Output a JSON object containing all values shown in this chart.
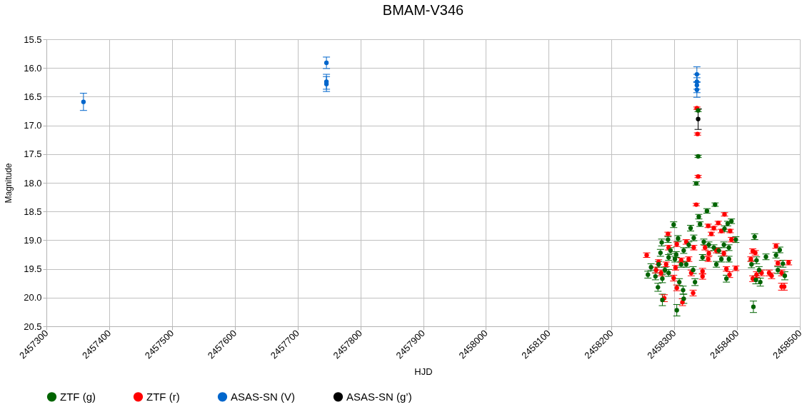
{
  "chart_data": {
    "type": "scatter",
    "title": "BMAM-V346",
    "xlabel": "HJD",
    "ylabel": "Magnitude",
    "xlim": [
      2457300,
      2458500
    ],
    "xticks": [
      2457300,
      2457400,
      2457500,
      2457600,
      2457700,
      2457800,
      2457900,
      2458000,
      2458100,
      2458200,
      2458300,
      2458400,
      2458500
    ],
    "ylim": [
      20.5,
      15.5
    ],
    "yticks": [
      {
        "value": 15.5,
        "label": "15.5"
      },
      {
        "value": 16,
        "label": "16.0"
      },
      {
        "value": 16.5,
        "label": "16.5"
      },
      {
        "value": 17,
        "label": "17.0"
      },
      {
        "value": 17.5,
        "label": "17.5"
      },
      {
        "value": 18,
        "label": "18.0"
      },
      {
        "value": 18.5,
        "label": "18.5"
      },
      {
        "value": 19,
        "label": "19.0"
      },
      {
        "value": 19.5,
        "label": "19.5"
      },
      {
        "value": 20,
        "label": "20.0"
      },
      {
        "value": 20.5,
        "label": "20.5"
      }
    ],
    "grid": true,
    "legend": "bottom",
    "marker": "circle",
    "series": [
      {
        "name": "ZTF (g)",
        "color": "#006400",
        "x": [
          2458338,
          2458338,
          2458335,
          2458365,
          2458352,
          2458339,
          2458391,
          2458385,
          2458299,
          2458326,
          2458341,
          2458380,
          2458306,
          2458290,
          2458280,
          2458331,
          2458347,
          2458355,
          2458363,
          2458371,
          2458379,
          2458387,
          2458398,
          2458345,
          2458367,
          2458387,
          2458294,
          2458278,
          2458291,
          2458303,
          2458315,
          2458323,
          2458263,
          2458258,
          2458270,
          2458275,
          2458285,
          2458281,
          2458274,
          2458281,
          2458304,
          2458308,
          2458314,
          2458315,
          2458319,
          2458330,
          2458333,
          2458383,
          2458375,
          2458428,
          2458426,
          2458423,
          2458431,
          2458435,
          2458430,
          2458437,
          2458446,
          2458462,
          2458468,
          2458465,
          2458473,
          2458476,
          2458301,
          2458311,
          2458291
        ],
        "values": [
          16.74,
          17.54,
          18.01,
          18.38,
          18.49,
          18.59,
          18.67,
          18.71,
          18.73,
          18.79,
          18.72,
          18.8,
          18.97,
          18.99,
          19.04,
          18.96,
          19.03,
          19.08,
          19.13,
          19.18,
          19.08,
          19.13,
          18.99,
          19.3,
          19.42,
          19.33,
          19.18,
          19.22,
          19.3,
          19.25,
          19.18,
          19.08,
          19.47,
          19.6,
          19.63,
          19.42,
          19.52,
          19.67,
          19.82,
          20.04,
          20.22,
          19.73,
          19.87,
          20.02,
          19.42,
          19.52,
          19.73,
          19.67,
          19.33,
          18.94,
          20.16,
          19.42,
          19.35,
          19.52,
          19.69,
          19.73,
          19.29,
          19.26,
          19.17,
          19.52,
          19.41,
          19.62,
          19.33,
          19.42,
          19.57
        ],
        "errors": [
          0.02,
          0.02,
          0.03,
          0.03,
          0.04,
          0.04,
          0.04,
          0.04,
          0.05,
          0.05,
          0.04,
          0.05,
          0.05,
          0.05,
          0.06,
          0.05,
          0.05,
          0.05,
          0.05,
          0.05,
          0.05,
          0.05,
          0.05,
          0.05,
          0.05,
          0.05,
          0.05,
          0.06,
          0.05,
          0.05,
          0.05,
          0.05,
          0.06,
          0.06,
          0.06,
          0.05,
          0.05,
          0.07,
          0.07,
          0.1,
          0.1,
          0.06,
          0.07,
          0.08,
          0.05,
          0.06,
          0.06,
          0.06,
          0.05,
          0.05,
          0.1,
          0.06,
          0.06,
          0.06,
          0.07,
          0.07,
          0.05,
          0.05,
          0.05,
          0.06,
          0.06,
          0.07,
          0.05,
          0.05,
          0.06
        ]
      },
      {
        "name": "ZTF (r)",
        "color": "#ff0000",
        "x": [
          2458336,
          2458337,
          2458338,
          2458335,
          2458380,
          2458290,
          2458370,
          2458354,
          2458363,
          2458359,
          2458375,
          2458389,
          2458304,
          2458319,
          2458331,
          2458349,
          2458355,
          2458367,
          2458379,
          2458391,
          2458256,
          2458275,
          2458287,
          2458291,
          2458302,
          2458311,
          2458327,
          2458345,
          2458345,
          2458354,
          2458383,
          2458398,
          2458388,
          2458299,
          2458304,
          2458313,
          2458330,
          2458284,
          2458279,
          2458271,
          2458323,
          2458425,
          2458422,
          2458429,
          2458425,
          2458439,
          2458451,
          2458462,
          2458465,
          2458471,
          2458471,
          2458475,
          2458482,
          2458455,
          2458431
        ],
        "values": [
          16.7,
          17.15,
          17.89,
          18.38,
          18.55,
          18.89,
          18.7,
          18.75,
          18.79,
          18.89,
          18.84,
          18.84,
          19.07,
          19.03,
          19.13,
          19.13,
          19.23,
          19.18,
          19.23,
          18.99,
          19.26,
          19.38,
          19.42,
          19.13,
          19.48,
          19.35,
          19.57,
          19.54,
          19.63,
          19.33,
          19.5,
          19.49,
          19.6,
          19.66,
          19.83,
          20.08,
          19.92,
          20.01,
          19.57,
          19.52,
          19.33,
          19.19,
          19.33,
          19.22,
          19.67,
          19.57,
          19.57,
          19.1,
          19.4,
          19.57,
          19.81,
          19.81,
          19.39,
          19.62,
          19.6
        ],
        "errors": [
          0.02,
          0.02,
          0.02,
          0.02,
          0.03,
          0.03,
          0.03,
          0.03,
          0.03,
          0.03,
          0.03,
          0.03,
          0.04,
          0.04,
          0.04,
          0.04,
          0.04,
          0.04,
          0.04,
          0.04,
          0.04,
          0.04,
          0.04,
          0.04,
          0.04,
          0.04,
          0.05,
          0.05,
          0.05,
          0.04,
          0.04,
          0.04,
          0.05,
          0.05,
          0.05,
          0.06,
          0.05,
          0.06,
          0.05,
          0.05,
          0.04,
          0.04,
          0.04,
          0.04,
          0.05,
          0.05,
          0.05,
          0.04,
          0.04,
          0.05,
          0.06,
          0.06,
          0.04,
          0.05,
          0.05
        ]
      },
      {
        "name": "ASAS-SN (V)",
        "color": "#0066cc",
        "x": [
          2457359,
          2457746,
          2457746,
          2457746,
          2458336,
          2458336,
          2458336,
          2458336
        ],
        "values": [
          16.59,
          15.91,
          16.24,
          16.28,
          16.11,
          16.24,
          16.3,
          16.38
        ],
        "errors": [
          0.15,
          0.1,
          0.13,
          0.13,
          0.13,
          0.13,
          0.13,
          0.13
        ]
      },
      {
        "name": "ASAS-SN (g’)",
        "color": "#000000",
        "x": [
          2458338
        ],
        "values": [
          16.89
        ],
        "errors": [
          0.18
        ]
      }
    ]
  }
}
